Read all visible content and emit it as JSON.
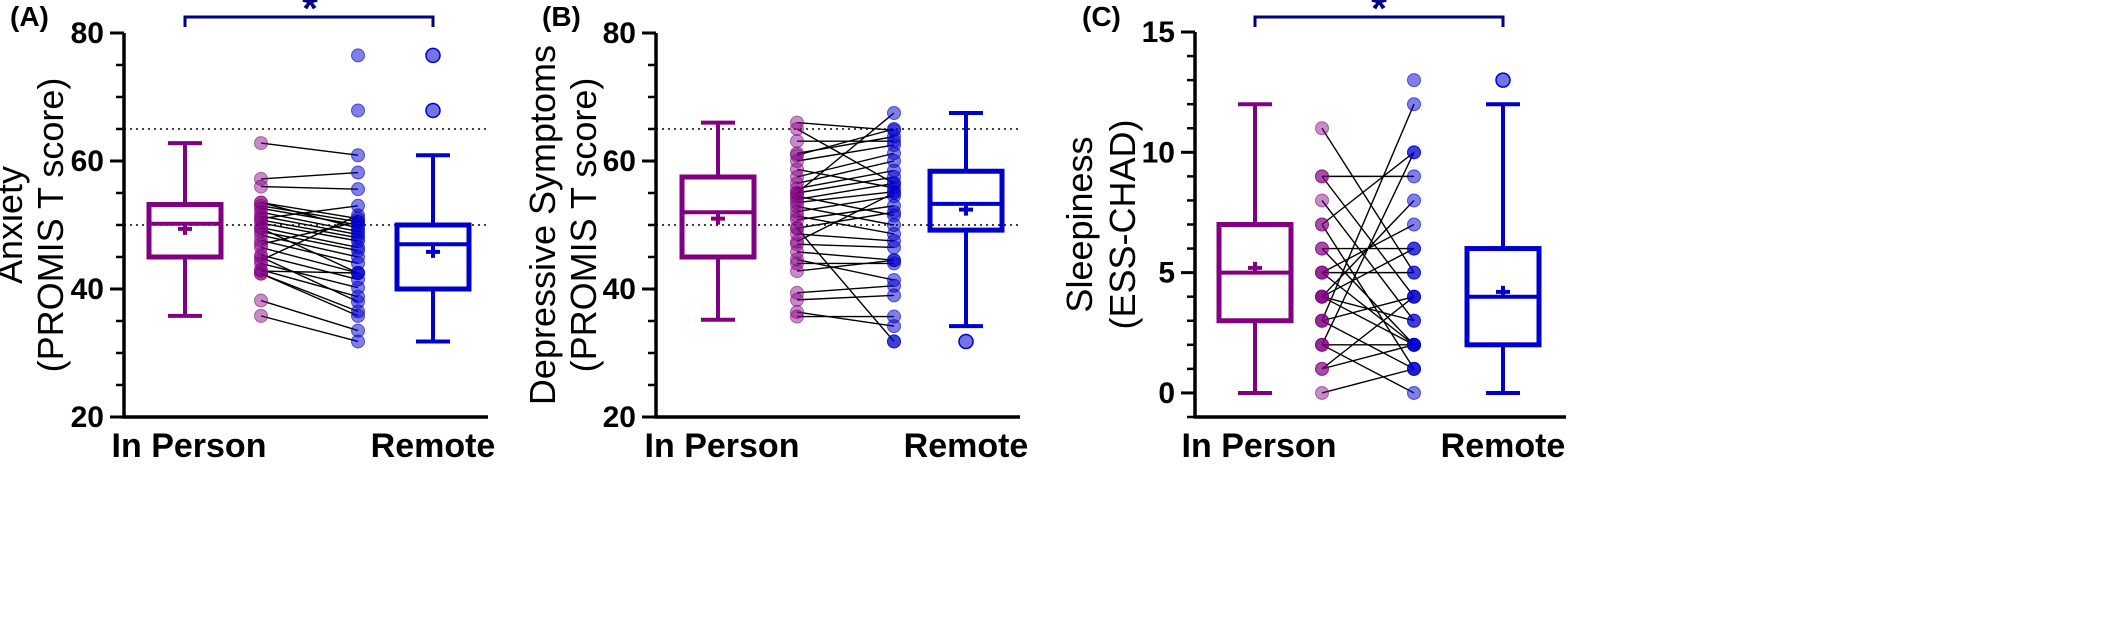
{
  "chart_data": [
    {
      "type": "box-paired",
      "panel_label": "(A)",
      "ylabel_lines": [
        "Anxiety",
        "(PROMIS T score)"
      ],
      "ylim": [
        20,
        80
      ],
      "yticks": [
        20,
        40,
        60,
        80
      ],
      "yticks_minor_step": 5,
      "reference_lines": [
        50,
        65
      ],
      "categories": [
        "In Person",
        "Remote"
      ],
      "significance": "*",
      "colors": {
        "in_person": "#800080",
        "remote": "#0000CC",
        "bracket": "#000080"
      },
      "boxes": {
        "in_person": {
          "min": 35.8,
          "q1": 45,
          "median": 50.2,
          "q3": 53.2,
          "max": 62.8,
          "mean": 49.4
        },
        "remote": {
          "min": 31.8,
          "q1": 40,
          "median": 47,
          "q3": 50,
          "max": 60.9,
          "mean": 45.8
        }
      },
      "remote_outliers": [
        67.9,
        76.5
      ],
      "pairs": [
        [
          62.8,
          60.9
        ],
        [
          57.2,
          58.2
        ],
        [
          56.0,
          55.6
        ],
        [
          53.5,
          51.0
        ],
        [
          53.0,
          50.5
        ],
        [
          52.6,
          50.0
        ],
        [
          52.0,
          49.0
        ],
        [
          51.4,
          48.5
        ],
        [
          50.8,
          48.0
        ],
        [
          50.3,
          47.5
        ],
        [
          49.6,
          46.5
        ],
        [
          49.0,
          46.0
        ],
        [
          48.4,
          45.0
        ],
        [
          47.6,
          44.0
        ],
        [
          46.5,
          42.5
        ],
        [
          45.3,
          41.5
        ],
        [
          44.0,
          40.2
        ],
        [
          43.0,
          38.8
        ],
        [
          42.4,
          36.5
        ],
        [
          42.4,
          35.8
        ],
        [
          38.2,
          33.5
        ],
        [
          35.8,
          31.8
        ],
        [
          53.5,
          49.5
        ],
        [
          51.0,
          53.0
        ],
        [
          47.0,
          50.5
        ],
        [
          49.5,
          42.5
        ],
        [
          44.5,
          51.5
        ],
        [
          45.0,
          38.0
        ],
        [
          42.8,
          42.5
        ]
      ]
    },
    {
      "type": "box-paired",
      "panel_label": "(B)",
      "ylabel_lines": [
        "Depressive Symptoms",
        "(PROMIS T score)"
      ],
      "ylim": [
        20,
        80
      ],
      "yticks": [
        20,
        40,
        60,
        80
      ],
      "yticks_minor_step": 5,
      "reference_lines": [
        50,
        65
      ],
      "categories": [
        "In Person",
        "Remote"
      ],
      "significance": "",
      "colors": {
        "in_person": "#800080",
        "remote": "#0000CC",
        "bracket": "#000080"
      },
      "boxes": {
        "in_person": {
          "min": 35.2,
          "q1": 45,
          "median": 52,
          "q3": 57.5,
          "max": 66,
          "mean": 51
        },
        "remote": {
          "min": 34.2,
          "q1": 49.2,
          "median": 53.3,
          "q3": 58.4,
          "max": 67.5,
          "mean": 52.4
        }
      },
      "remote_outliers": [
        31.8
      ],
      "pairs": [
        [
          66.0,
          64.8
        ],
        [
          65.0,
          56.5
        ],
        [
          63.1,
          63.1
        ],
        [
          61.2,
          63.8
        ],
        [
          60.0,
          62.5
        ],
        [
          58.7,
          55.8
        ],
        [
          57.5,
          61.2
        ],
        [
          56.5,
          60.0
        ],
        [
          55.7,
          58.5
        ],
        [
          55.0,
          57.5
        ],
        [
          54.5,
          51.5
        ],
        [
          54.0,
          56.5
        ],
        [
          53.5,
          55.2
        ],
        [
          52.9,
          50.0
        ],
        [
          52.1,
          54.5
        ],
        [
          51.4,
          48.6
        ],
        [
          50.8,
          53.0
        ],
        [
          49.5,
          52.0
        ],
        [
          48.6,
          47.5
        ],
        [
          47.4,
          55.0
        ],
        [
          45.8,
          44.5
        ],
        [
          44.6,
          41.4
        ],
        [
          44.0,
          44.0
        ],
        [
          42.8,
          44.5
        ],
        [
          39.4,
          40.5
        ],
        [
          38.3,
          39.0
        ],
        [
          36.4,
          34.2
        ],
        [
          35.7,
          35.7
        ],
        [
          49.5,
          31.8
        ],
        [
          60.9,
          65.0
        ],
        [
          55.0,
          67.5
        ],
        [
          47.0,
          46.5
        ]
      ]
    },
    {
      "type": "box-paired",
      "panel_label": "(C)",
      "ylabel_lines": [
        "Sleepiness",
        "(ESS-CHAD)"
      ],
      "ylim": [
        -1,
        15
      ],
      "yticks": [
        0,
        5,
        10,
        15
      ],
      "yticks_minor_step": 1,
      "reference_lines": [],
      "categories": [
        "In Person",
        "Remote"
      ],
      "significance": "*",
      "colors": {
        "in_person": "#800080",
        "remote": "#0000CC",
        "bracket": "#000080"
      },
      "boxes": {
        "in_person": {
          "min": 0,
          "q1": 3,
          "median": 5,
          "q3": 7,
          "max": 12,
          "mean": 5.2
        },
        "remote": {
          "min": 0,
          "q1": 2,
          "median": 4,
          "q3": 6,
          "max": 12,
          "mean": 4.2
        }
      },
      "remote_outliers": [
        13
      ],
      "pairs": [
        [
          11,
          5
        ],
        [
          9,
          9
        ],
        [
          9,
          4
        ],
        [
          8,
          3
        ],
        [
          7,
          10
        ],
        [
          7,
          1
        ],
        [
          6,
          6
        ],
        [
          6,
          2
        ],
        [
          5,
          7
        ],
        [
          5,
          5
        ],
        [
          5,
          2
        ],
        [
          4,
          8
        ],
        [
          4,
          3
        ],
        [
          4,
          2
        ],
        [
          3,
          4
        ],
        [
          3,
          1
        ],
        [
          2,
          2
        ],
        [
          2,
          0
        ],
        [
          1,
          2
        ],
        [
          0,
          1
        ],
        [
          1,
          4
        ],
        [
          3,
          12
        ],
        [
          2,
          10
        ],
        [
          4,
          6
        ]
      ]
    }
  ]
}
